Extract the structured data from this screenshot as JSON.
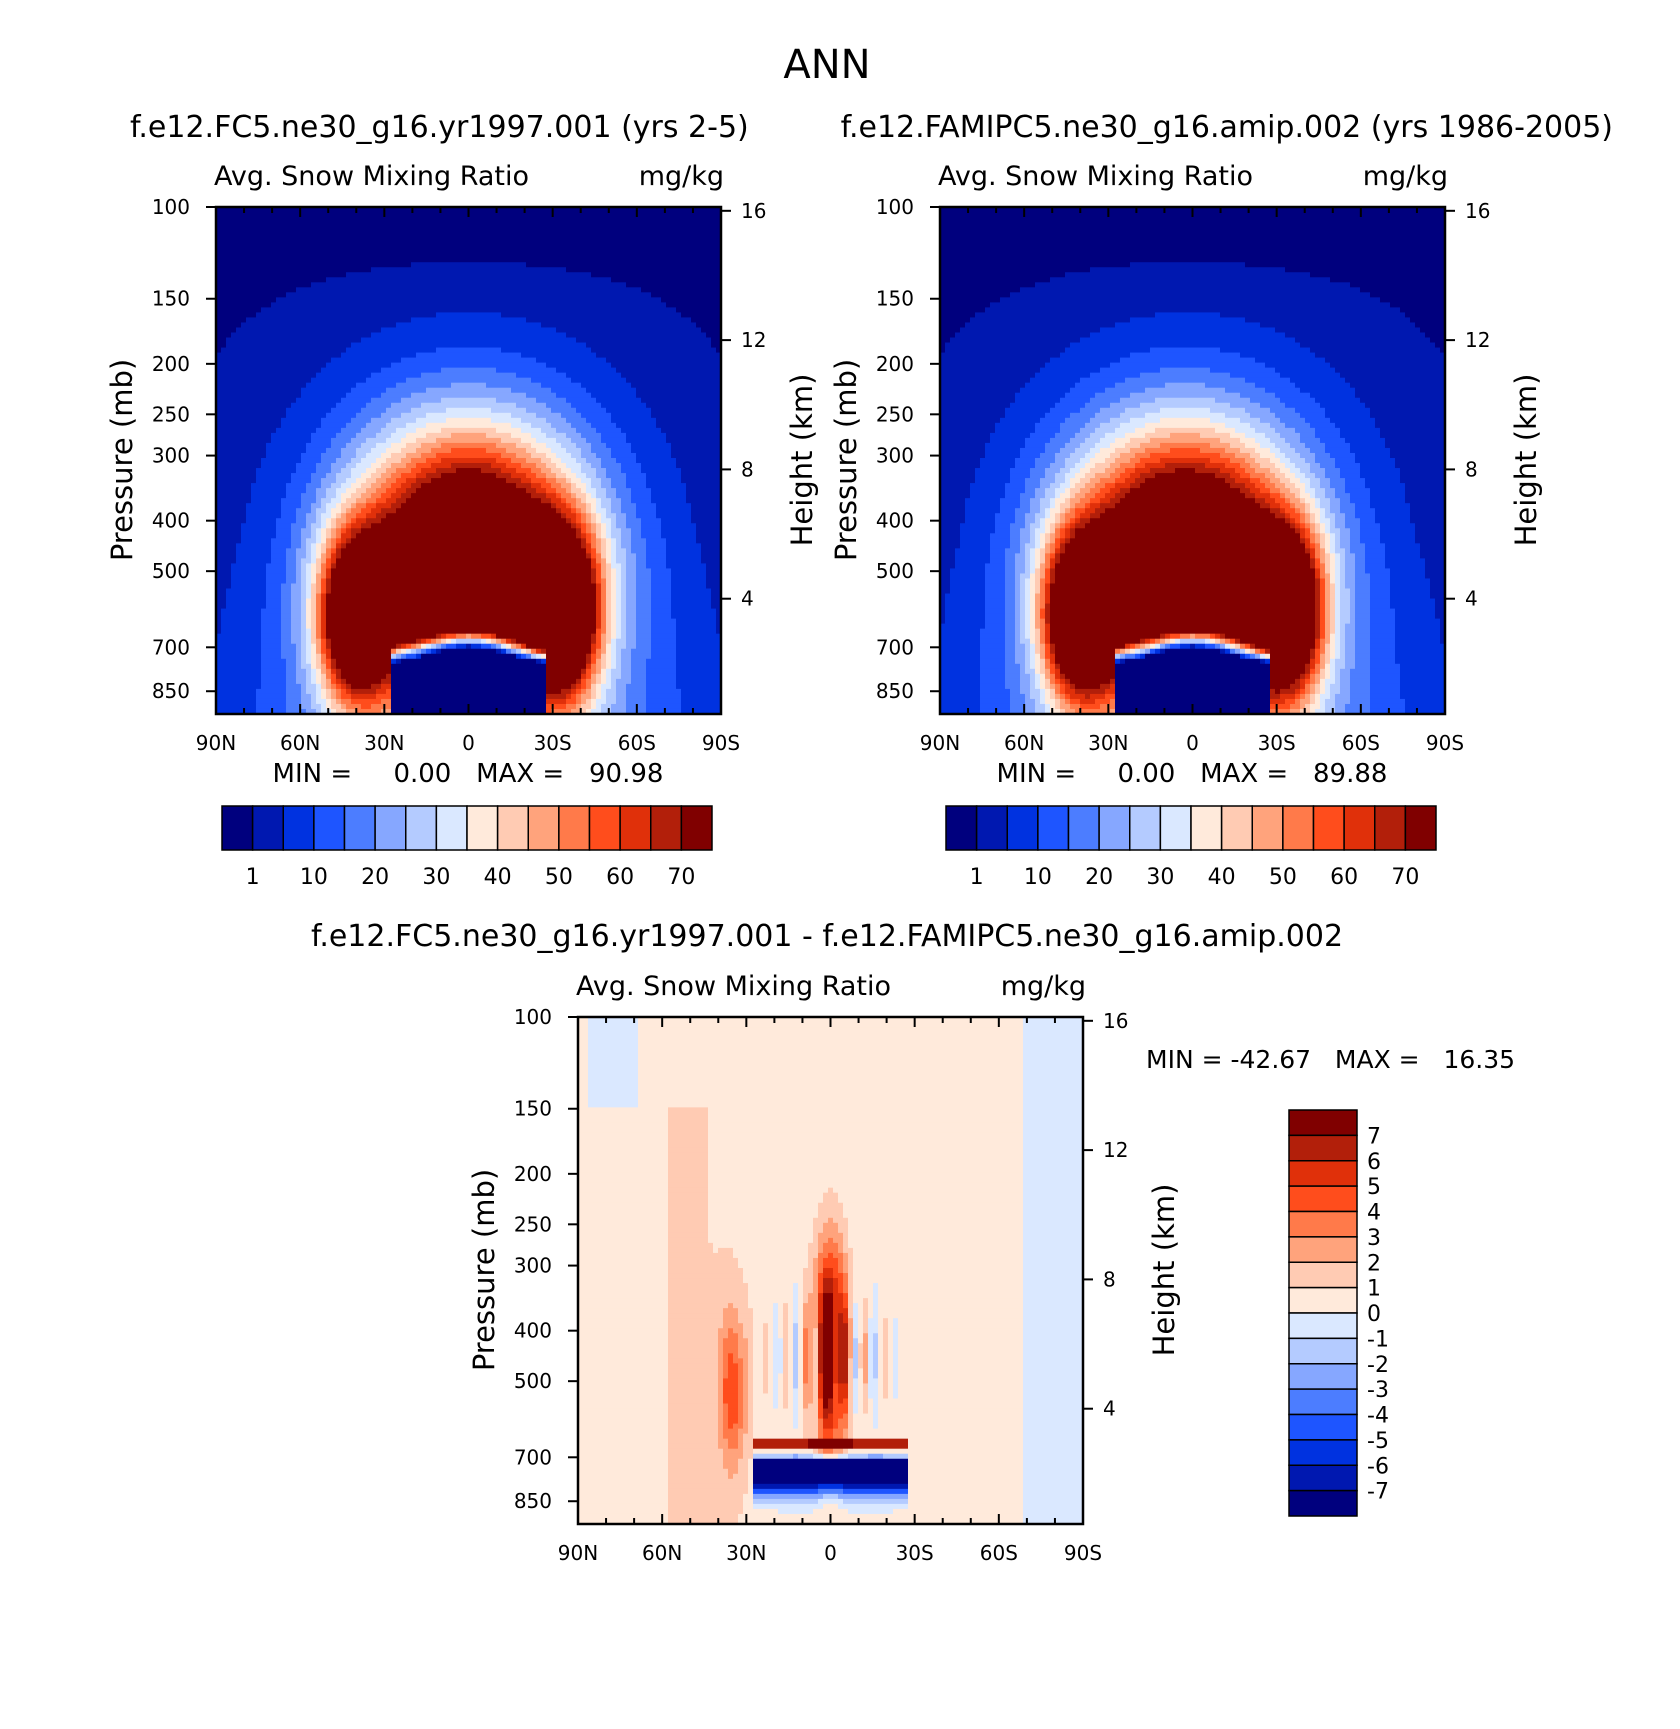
{
  "page_title": "ANN",
  "panels": [
    {
      "title": "f.e12.FC5.ne30_g16.yr1997.001 (yrs 2-5)",
      "left_label": "Avg. Snow Mixing Ratio",
      "right_label": "mg/kg",
      "stats": "MIN =     0.00   MAX =   90.98"
    },
    {
      "title": "f.e12.FAMIPC5.ne30_g16.amip.002 (yrs 1986-2005)",
      "left_label": "Avg. Snow Mixing Ratio",
      "right_label": "mg/kg",
      "stats": "MIN =     0.00   MAX =   89.88"
    },
    {
      "title": "f.e12.FC5.ne30_g16.yr1997.001 - f.e12.FAMIPC5.ne30_g16.amip.002",
      "left_label": "Avg. Snow Mixing Ratio",
      "right_label": "mg/kg",
      "stats": "MIN = -42.67   MAX =   16.35"
    }
  ],
  "colors": {
    "main_scale": [
      "#00007e",
      "#0018b0",
      "#0032e0",
      "#1e55ff",
      "#4c7dff",
      "#86a7ff",
      "#b4cbff",
      "#dae8ff",
      "#ffeadb",
      "#ffcbb3",
      "#ffa37c",
      "#ff7a4a",
      "#ff4d1c",
      "#e0300a",
      "#b21f0a",
      "#800000"
    ],
    "diff_scale": [
      "#00007e",
      "#0018b0",
      "#0032e0",
      "#1e55ff",
      "#4c7dff",
      "#86a7ff",
      "#b4cbff",
      "#dae8ff",
      "#ffeadb",
      "#ffcbb3",
      "#ffa37c",
      "#ff7a4a",
      "#ff4d1c",
      "#e0300a",
      "#b21f0a",
      "#800000"
    ]
  },
  "chart_data": [
    {
      "type": "heatmap",
      "title": "f.e12.FC5.ne30_g16.yr1997.001 (yrs 2-5)",
      "xlabel": "",
      "ylabel": "Pressure (mb)",
      "y2label": "Height (km)",
      "x_ticks": [
        "90N",
        "60N",
        "30N",
        "0",
        "30S",
        "60S",
        "90S"
      ],
      "y_ticks": [
        "100",
        "150",
        "200",
        "250",
        "300",
        "400",
        "500",
        "700",
        "850"
      ],
      "y2_ticks": [
        "16",
        "12",
        "8",
        "4"
      ],
      "colorbar_labels": [
        "1",
        "10",
        "20",
        "30",
        "40",
        "50",
        "60",
        "70"
      ],
      "min": 0.0,
      "max": 90.98,
      "max_locations": [
        {
          "lat": 40,
          "p": 630
        },
        {
          "lat": 0,
          "p": 470
        },
        {
          "lat": -35,
          "p": 620
        }
      ]
    },
    {
      "type": "heatmap",
      "title": "f.e12.FAMIPC5.ne30_g16.amip.002 (yrs 1986-2005)",
      "xlabel": "",
      "ylabel": "Pressure (mb)",
      "y2label": "Height (km)",
      "x_ticks": [
        "90N",
        "60N",
        "30N",
        "0",
        "30S",
        "60S",
        "90S"
      ],
      "y_ticks": [
        "100",
        "150",
        "200",
        "250",
        "300",
        "400",
        "500",
        "700",
        "850"
      ],
      "y2_ticks": [
        "16",
        "12",
        "8",
        "4"
      ],
      "colorbar_labels": [
        "1",
        "10",
        "20",
        "30",
        "40",
        "50",
        "60",
        "70"
      ],
      "min": 0.0,
      "max": 89.88,
      "max_locations": [
        {
          "lat": 40,
          "p": 620
        },
        {
          "lat": 5,
          "p": 450
        },
        {
          "lat": -32,
          "p": 610
        }
      ]
    },
    {
      "type": "heatmap",
      "title": "f.e12.FC5.ne30_g16.yr1997.001 - f.e12.FAMIPC5.ne30_g16.amip.002",
      "xlabel": "",
      "ylabel": "Pressure (mb)",
      "y2label": "Height (km)",
      "x_ticks": [
        "90N",
        "60N",
        "30N",
        "0",
        "30S",
        "60S",
        "90S"
      ],
      "y_ticks": [
        "100",
        "150",
        "200",
        "250",
        "300",
        "400",
        "500",
        "700",
        "850"
      ],
      "y2_ticks": [
        "16",
        "12",
        "8",
        "4"
      ],
      "colorbar_labels": [
        "7",
        "6",
        "5",
        "4",
        "3",
        "2",
        "1",
        "0",
        "-1",
        "-2",
        "-3",
        "-4",
        "-5",
        "-6",
        "-7"
      ],
      "min": -42.67,
      "max": 16.35
    }
  ]
}
